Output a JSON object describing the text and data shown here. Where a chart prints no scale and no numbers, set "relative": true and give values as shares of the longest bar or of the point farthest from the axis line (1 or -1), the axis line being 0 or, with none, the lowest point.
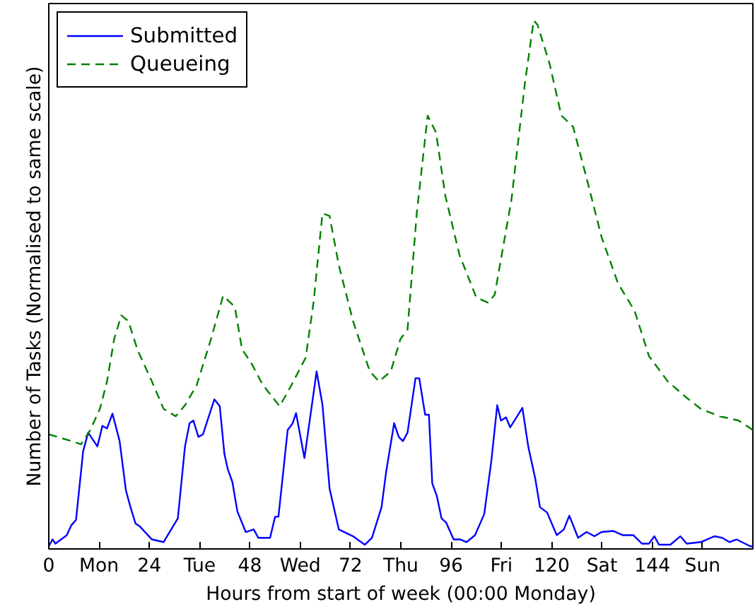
{
  "chart_data": {
    "type": "line",
    "relative": true,
    "xlabel": "Hours from start of week (00:00 Monday)",
    "ylabel": "Number of Tasks (Normalised to same scale)",
    "xlim": [
      0,
      168
    ],
    "xticks": [
      0,
      {
        "value": 12,
        "label": "Mon"
      },
      24,
      {
        "value": 36,
        "label": "Tue"
      },
      48,
      {
        "value": 60,
        "label": "Wed"
      },
      72,
      {
        "value": 84,
        "label": "Thu"
      },
      96,
      {
        "value": 108,
        "label": "Fri"
      },
      120,
      {
        "value": 132,
        "label": "Sat"
      },
      144,
      {
        "value": 156,
        "label": "Sun"
      }
    ],
    "legend": "top left",
    "grid": false,
    "series": [
      {
        "name": "Submitted",
        "color": "#0000ff",
        "line_style": "solid",
        "x": [
          0,
          0.9,
          1.6,
          4.3,
          5.4,
          6.5,
          8.2,
          9.4,
          11.6,
          12.8,
          13.9,
          15.2,
          16.9,
          18.4,
          19.5,
          20.7,
          21.8,
          24.6,
          27.4,
          30.8,
          32.5,
          33.6,
          34.5,
          35.7,
          36.8,
          39.5,
          40.8,
          41.9,
          42.7,
          43.8,
          45,
          47,
          48.9,
          50,
          52.8,
          54,
          54.8,
          57,
          58.2,
          59,
          61,
          63.2,
          63.9,
          65.3,
          67,
          69.2,
          72.6,
          75.4,
          77.1,
          79.4,
          80.5,
          82.4,
          83.5,
          84.5,
          85.6,
          87.5,
          88.4,
          89.8,
          90.7,
          91.5,
          92.6,
          93.7,
          94.8,
          96.6,
          98.2,
          99.7,
          101.7,
          103.9,
          105.6,
          107,
          107.9,
          109.1,
          110.1,
          113,
          114.4,
          116.1,
          117.2,
          118.9,
          121.2,
          122.9,
          124.2,
          126.3,
          128.3,
          130.2,
          131.9,
          134.7,
          137,
          139.5,
          141.5,
          143.2,
          144.5,
          145.6,
          148.3,
          150.7,
          152.2,
          155.6,
          158.8,
          160.7,
          162.4,
          164.1,
          167.4,
          168
        ],
        "values": [
          0.005,
          0.018,
          0.01,
          0.026,
          0.045,
          0.055,
          0.185,
          0.22,
          0.194,
          0.233,
          0.228,
          0.256,
          0.204,
          0.111,
          0.079,
          0.048,
          0.042,
          0.018,
          0.013,
          0.058,
          0.194,
          0.238,
          0.243,
          0.212,
          0.217,
          0.283,
          0.27,
          0.18,
          0.151,
          0.127,
          0.071,
          0.032,
          0.037,
          0.021,
          0.021,
          0.061,
          0.061,
          0.225,
          0.238,
          0.257,
          0.172,
          0.296,
          0.336,
          0.273,
          0.114,
          0.037,
          0.024,
          0.008,
          0.021,
          0.079,
          0.146,
          0.238,
          0.212,
          0.204,
          0.22,
          0.323,
          0.323,
          0.254,
          0.254,
          0.124,
          0.1,
          0.058,
          0.05,
          0.018,
          0.018,
          0.013,
          0.026,
          0.066,
          0.167,
          0.272,
          0.243,
          0.249,
          0.23,
          0.267,
          0.194,
          0.132,
          0.079,
          0.069,
          0.026,
          0.037,
          0.063,
          0.021,
          0.032,
          0.024,
          0.032,
          0.034,
          0.026,
          0.026,
          0.01,
          0.01,
          0.024,
          0.008,
          0.008,
          0.024,
          0.01,
          0.013,
          0.024,
          0.021,
          0.013,
          0.018,
          0.005,
          0.005
        ]
      },
      {
        "name": "Queueing",
        "color": "#008000",
        "line_style": "dashed",
        "x": [
          0,
          5.4,
          7.7,
          9.9,
          12.2,
          13.9,
          15.6,
          17.3,
          19,
          21.2,
          24.6,
          27.4,
          30.3,
          32.5,
          35.3,
          38.7,
          41.6,
          44.4,
          46.1,
          48.3,
          51.1,
          55.1,
          57.9,
          61.3,
          63.2,
          65.3,
          67,
          69.2,
          72.6,
          76.6,
          78.8,
          81.6,
          83.9,
          85.6,
          87.8,
          90.4,
          92.4,
          94.6,
          98,
          102,
          104.8,
          106.4,
          110.4,
          113.6,
          115.7,
          116.6,
          119.5,
          122.3,
          125.1,
          128.5,
          131.9,
          135.8,
          139.8,
          143.2,
          147.7,
          152.2,
          155.6,
          160.1,
          164.6,
          168
        ],
        "values": [
          0.217,
          0.204,
          0.198,
          0.225,
          0.265,
          0.317,
          0.397,
          0.442,
          0.431,
          0.376,
          0.317,
          0.265,
          0.251,
          0.272,
          0.31,
          0.397,
          0.479,
          0.458,
          0.378,
          0.352,
          0.31,
          0.27,
          0.31,
          0.362,
          0.468,
          0.635,
          0.63,
          0.537,
          0.431,
          0.336,
          0.317,
          0.336,
          0.397,
          0.415,
          0.635,
          0.82,
          0.788,
          0.669,
          0.556,
          0.476,
          0.466,
          0.481,
          0.661,
          0.881,
          1.0,
          0.992,
          0.918,
          0.82,
          0.799,
          0.696,
          0.59,
          0.503,
          0.45,
          0.365,
          0.317,
          0.286,
          0.265,
          0.251,
          0.243,
          0.225
        ]
      }
    ]
  }
}
